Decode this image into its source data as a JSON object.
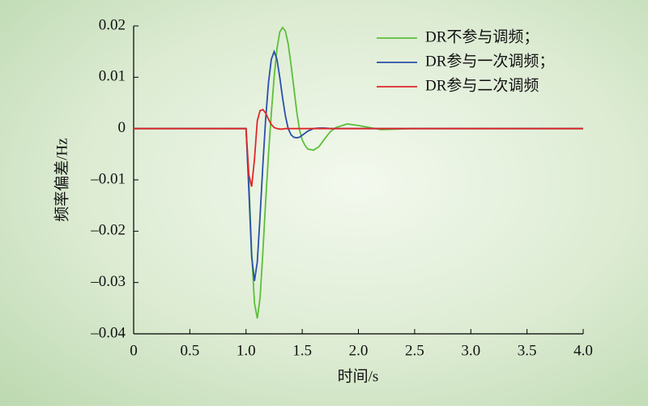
{
  "chart_data": {
    "type": "line",
    "xlabel": "时间/s",
    "ylabel": "频率偏差/Hz",
    "x": [
      0,
      1.0,
      1.025,
      1.05,
      1.075,
      1.1,
      1.125,
      1.15,
      1.175,
      1.2,
      1.225,
      1.25,
      1.275,
      1.3,
      1.325,
      1.35,
      1.375,
      1.4,
      1.425,
      1.45,
      1.475,
      1.5,
      1.525,
      1.55,
      1.6,
      1.65,
      1.7,
      1.75,
      1.8,
      1.9,
      2.0,
      2.2,
      2.5,
      4.0
    ],
    "series": [
      {
        "name": "DR不参与调频；",
        "color": "#5cbf3a",
        "values": [
          0,
          0,
          -0.01,
          -0.024,
          -0.034,
          -0.037,
          -0.033,
          -0.024,
          -0.014,
          -0.005,
          0.003,
          0.01,
          0.0155,
          0.0188,
          0.0197,
          0.019,
          0.0165,
          0.0125,
          0.008,
          0.0035,
          -0.0002,
          -0.0022,
          -0.0033,
          -0.004,
          -0.0042,
          -0.0035,
          -0.002,
          -0.0006,
          0.0002,
          0.0009,
          0.0006,
          -0.0002,
          0,
          0
        ]
      },
      {
        "name": "DR参与一次调频；",
        "color": "#2a4fa8",
        "values": [
          0,
          0,
          -0.012,
          -0.025,
          -0.0297,
          -0.026,
          -0.017,
          -0.007,
          0.002,
          0.009,
          0.0135,
          0.015,
          0.0135,
          0.01,
          0.006,
          0.0025,
          0,
          -0.0012,
          -0.0017,
          -0.0018,
          -0.0017,
          -0.0013,
          -0.0009,
          -0.0005,
          0,
          0.0001,
          0.0001,
          0,
          0,
          0,
          0,
          0,
          0,
          0
        ]
      },
      {
        "name": "DR参与二次调频",
        "color": "#e0262a",
        "values": [
          0,
          0,
          -0.009,
          -0.0113,
          -0.006,
          0.0015,
          0.0035,
          0.0037,
          0.003,
          0.0018,
          0.0008,
          0.0002,
          0,
          -0.0001,
          -0.0001,
          0,
          0,
          0,
          0,
          0,
          0,
          0,
          0,
          0,
          0,
          0,
          0,
          0,
          0,
          0,
          0,
          0,
          0,
          0
        ]
      }
    ],
    "xlim": [
      0,
      4.0
    ],
    "xticks": [
      0,
      0.5,
      {
        "value": 1.0,
        "label": "1.0"
      },
      1.5,
      {
        "value": 2.0,
        "label": "2.0"
      },
      2.5,
      {
        "value": 3.0,
        "label": "3.0"
      },
      3.5,
      {
        "value": 4.0,
        "label": "4.0"
      }
    ],
    "ylim": [
      -0.04,
      0.02
    ],
    "yticks": [
      {
        "value": -0.04,
        "label": "–0.04"
      },
      {
        "value": -0.03,
        "label": "–0.03"
      },
      {
        "value": -0.02,
        "label": "–0.02"
      },
      {
        "value": -0.01,
        "label": "–0.01"
      },
      0,
      0.01,
      0.02
    ],
    "legend": "upper-right"
  }
}
